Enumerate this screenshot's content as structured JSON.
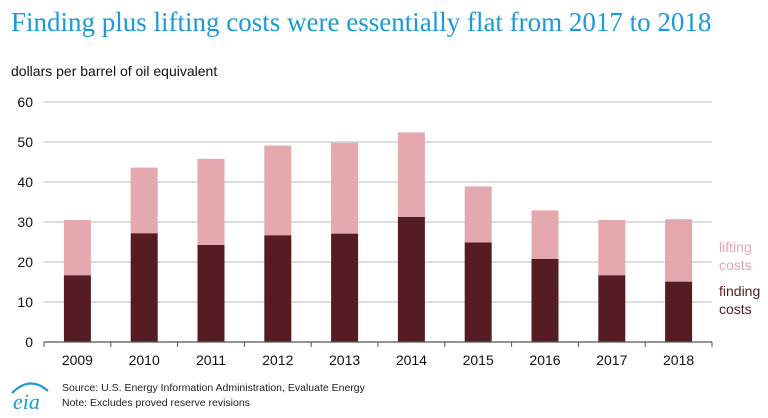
{
  "title": "Finding plus lifting costs were essentially flat from 2017 to 2018",
  "units_label": "dollars per barrel of oil equivalent",
  "footer": {
    "source": "Source: U.S. Energy Information Administration, Evaluate Energy",
    "note": "Note: Excludes proved reserve revisions"
  },
  "logo_text": "eia",
  "colors": {
    "title": "#1a9ad6",
    "finding": "#561c24",
    "lifting": "#e5a8ae",
    "grid": "#bbbbbb",
    "logo": "#1a9ad6"
  },
  "chart_data": {
    "type": "bar",
    "stacked": true,
    "categories": [
      "2009",
      "2010",
      "2011",
      "2012",
      "2013",
      "2014",
      "2015",
      "2016",
      "2017",
      "2018"
    ],
    "series": [
      {
        "name": "finding costs",
        "label_lines": [
          "finding",
          "costs"
        ],
        "values": [
          16.7,
          27.2,
          24.3,
          26.7,
          27.1,
          31.3,
          24.9,
          20.8,
          16.7,
          15.1
        ]
      },
      {
        "name": "lifting costs",
        "label_lines": [
          "lifting",
          "costs"
        ],
        "values": [
          13.8,
          16.4,
          21.5,
          22.4,
          22.7,
          21.1,
          14.0,
          12.1,
          13.8,
          15.6
        ]
      }
    ],
    "y_ticks": [
      "0",
      "10",
      "20",
      "30",
      "40",
      "50",
      "60"
    ],
    "ylim": [
      0,
      60
    ],
    "grid": true,
    "legend_placement": "right, inline labels"
  }
}
